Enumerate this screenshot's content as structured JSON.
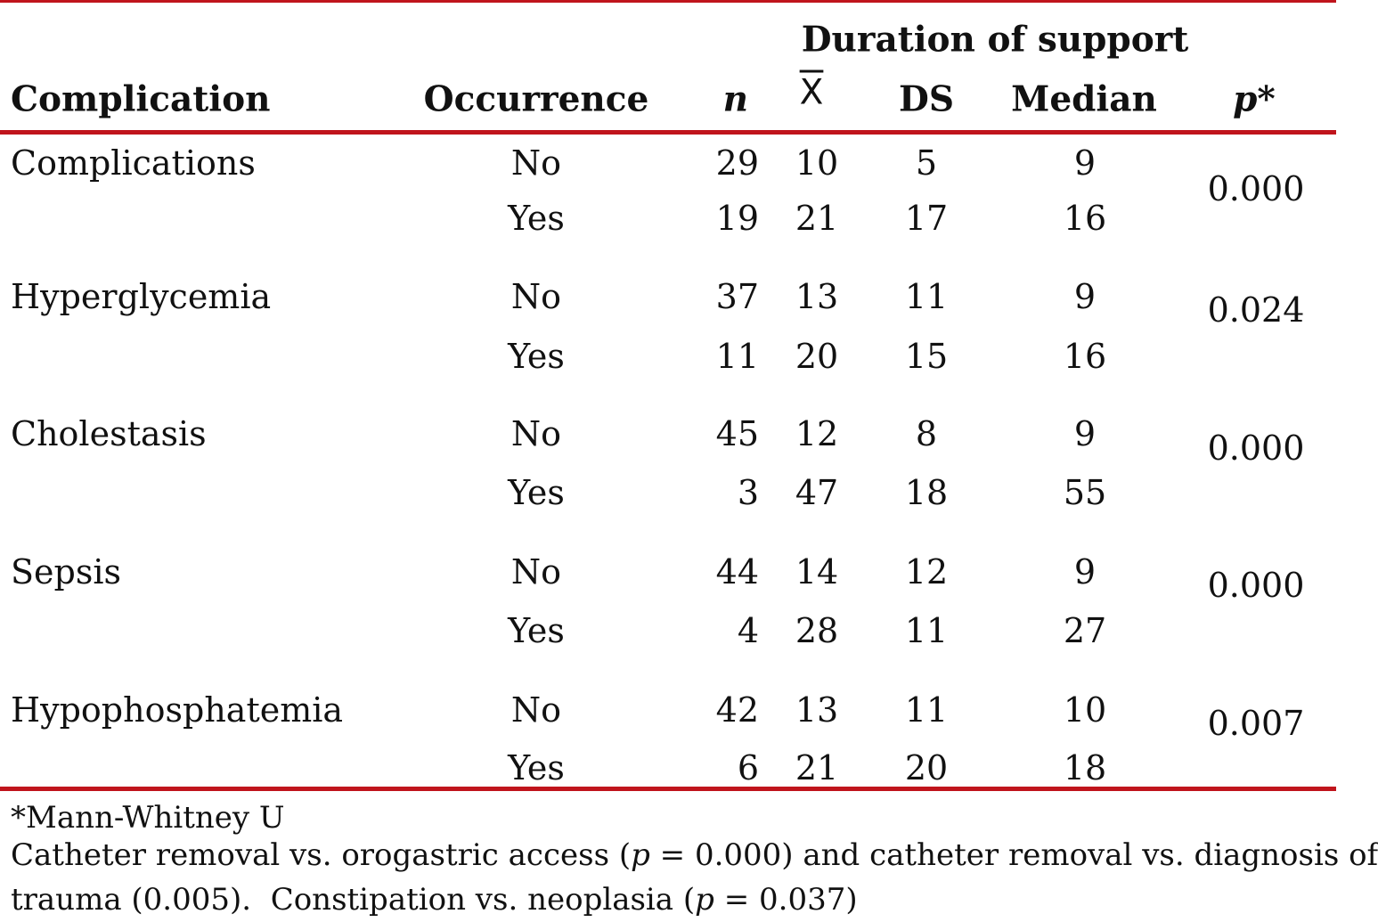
{
  "table": {
    "header": {
      "group": "Duration of support",
      "columns": [
        "Complication",
        "Occurrence",
        "n",
        "X",
        "DS",
        "Median",
        "p*"
      ]
    },
    "groups": [
      {
        "complication": "Complications",
        "p": "0.000",
        "rows": [
          [
            "No",
            "29",
            "10",
            "5",
            "9"
          ],
          [
            "Yes",
            "19",
            "21",
            "17",
            "16"
          ]
        ]
      },
      {
        "complication": "Hyperglycemia",
        "p": "0.024",
        "rows": [
          [
            "No",
            "37",
            "13",
            "11",
            "9"
          ],
          [
            "Yes",
            "11",
            "20",
            "15",
            "16"
          ]
        ]
      },
      {
        "complication": "Cholestasis",
        "p": "0.000",
        "rows": [
          [
            "No",
            "45",
            "12",
            "8",
            "9"
          ],
          [
            "Yes",
            "3",
            "47",
            "18",
            "55"
          ]
        ]
      },
      {
        "complication": "Sepsis",
        "p": "0.000",
        "rows": [
          [
            "No",
            "44",
            "14",
            "12",
            "9"
          ],
          [
            "Yes",
            "4",
            "28",
            "11",
            "27"
          ]
        ]
      },
      {
        "complication": "Hypophosphatemia",
        "p": "0.007",
        "rows": [
          [
            "No",
            "42",
            "13",
            "11",
            "10"
          ],
          [
            "Yes",
            "6",
            "21",
            "20",
            "18"
          ]
        ]
      }
    ],
    "footnotes": {
      "test": "*Mann-Whitney U",
      "note": [
        [
          "Catheter removal vs. orogastric access (",
          "p",
          " = 0.000) and catheter removal vs. diagnosis of"
        ],
        [
          "trauma (0.005).  Constipation vs. neoplasia (",
          "p",
          " = 0.037)"
        ]
      ]
    }
  }
}
